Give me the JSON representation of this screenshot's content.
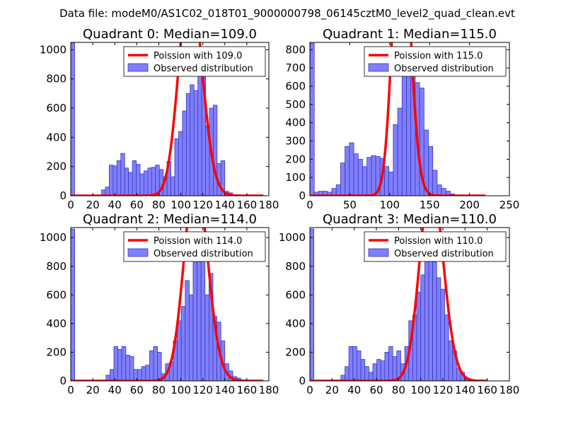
{
  "figure": {
    "suptitle": "Data file: modeM0/AS1C02_018T01_9000000798_06145cztM0_level2_quad_clean.evt",
    "colors": {
      "poisson": "#ff0000",
      "hist_fill": "#7f7fff",
      "hist_edge": "#3a3ab8"
    }
  },
  "chart_data": [
    {
      "type": "bar",
      "title": "Quadrant 0: Median=109.0",
      "xlabel": "",
      "ylabel": "",
      "xlim": [
        0,
        180
      ],
      "ylim": [
        0,
        1050
      ],
      "xticks": [
        0,
        20,
        40,
        60,
        80,
        100,
        120,
        140,
        160,
        180
      ],
      "yticks": [
        0,
        200,
        400,
        600,
        800,
        1000
      ],
      "grid": false,
      "legend": {
        "placement": "top-right",
        "entries": [
          "Poission with 109.0",
          "Observed distribution"
        ]
      },
      "series": [
        {
          "name": "Observed distribution",
          "bin_width": 3.5,
          "bins": [
            [
              0,
              1045
            ],
            [
              28,
              40
            ],
            [
              31.5,
              60
            ],
            [
              35,
              210
            ],
            [
              38.5,
              205
            ],
            [
              42,
              240
            ],
            [
              45.5,
              290
            ],
            [
              49,
              190
            ],
            [
              52.5,
              160
            ],
            [
              56,
              240
            ],
            [
              59.5,
              215
            ],
            [
              63,
              150
            ],
            [
              66.5,
              170
            ],
            [
              70,
              190
            ],
            [
              73.5,
              195
            ],
            [
              77,
              210
            ],
            [
              80.5,
              180
            ],
            [
              84,
              130
            ],
            [
              87.5,
              235
            ],
            [
              91,
              130
            ],
            [
              94.5,
              390
            ],
            [
              98,
              440
            ],
            [
              101.5,
              580
            ],
            [
              105,
              700
            ],
            [
              108.5,
              760
            ],
            [
              112,
              720
            ],
            [
              115.5,
              1000
            ],
            [
              119,
              820
            ],
            [
              122.5,
              480
            ],
            [
              126,
              600
            ],
            [
              129.5,
              620
            ],
            [
              133,
              220
            ],
            [
              136.5,
              240
            ],
            [
              140,
              30
            ],
            [
              143.5,
              20
            ]
          ]
        },
        {
          "name": "Poission with 109.0",
          "mean": 109.0,
          "x": [
            0,
            175
          ]
        }
      ]
    },
    {
      "type": "bar",
      "title": "Quadrant 1: Median=115.0",
      "xlabel": "",
      "ylabel": "",
      "xlim": [
        0,
        250
      ],
      "ylim": [
        0,
        840
      ],
      "xticks": [
        0,
        50,
        100,
        150,
        200,
        250
      ],
      "yticks": [
        0,
        100,
        200,
        300,
        400,
        500,
        600,
        700,
        800
      ],
      "grid": false,
      "legend": {
        "placement": "top-right",
        "entries": [
          "Poission with 115.0",
          "Observed distribution"
        ]
      },
      "series": [
        {
          "name": "Observed distribution",
          "bin_width": 5.5,
          "bins": [
            [
              0,
              835
            ],
            [
              5.5,
              20
            ],
            [
              11,
              25
            ],
            [
              16.5,
              25
            ],
            [
              22,
              20
            ],
            [
              27.5,
              40
            ],
            [
              33,
              60
            ],
            [
              38.5,
              180
            ],
            [
              44,
              270
            ],
            [
              49.5,
              290
            ],
            [
              55,
              230
            ],
            [
              60.5,
              200
            ],
            [
              66,
              160
            ],
            [
              71.5,
              210
            ],
            [
              77,
              220
            ],
            [
              82.5,
              215
            ],
            [
              88,
              205
            ],
            [
              93.5,
              160
            ],
            [
              99,
              130
            ],
            [
              104.5,
              390
            ],
            [
              110,
              480
            ],
            [
              115.5,
              660
            ],
            [
              121,
              720
            ],
            [
              126.5,
              800
            ],
            [
              132,
              620
            ],
            [
              137.5,
              590
            ],
            [
              143,
              360
            ],
            [
              148.5,
              270
            ],
            [
              154,
              140
            ],
            [
              159.5,
              60
            ],
            [
              165,
              40
            ],
            [
              170.5,
              25
            ],
            [
              176,
              10
            ]
          ]
        },
        {
          "name": "Poission with 115.0",
          "mean": 115.0,
          "x": [
            0,
            220
          ]
        }
      ]
    },
    {
      "type": "bar",
      "title": "Quadrant 2: Median=114.0",
      "xlabel": "",
      "ylabel": "",
      "xlim": [
        0,
        180
      ],
      "ylim": [
        0,
        1070
      ],
      "xticks": [
        0,
        20,
        40,
        60,
        80,
        100,
        120,
        140,
        160,
        180
      ],
      "yticks": [
        0,
        200,
        400,
        600,
        800,
        1000
      ],
      "grid": false,
      "legend": {
        "placement": "top-right",
        "entries": [
          "Poission with 114.0",
          "Observed distribution"
        ]
      },
      "series": [
        {
          "name": "Observed distribution",
          "bin_width": 3.6,
          "bins": [
            [
              0,
              1060
            ],
            [
              32,
              40
            ],
            [
              35.6,
              80
            ],
            [
              39.2,
              240
            ],
            [
              42.8,
              220
            ],
            [
              46.4,
              240
            ],
            [
              50,
              180
            ],
            [
              53.6,
              170
            ],
            [
              57.2,
              80
            ],
            [
              60.8,
              80
            ],
            [
              64.4,
              100
            ],
            [
              68,
              110
            ],
            [
              71.6,
              210
            ],
            [
              75.2,
              240
            ],
            [
              78.8,
              200
            ],
            [
              82.4,
              50
            ],
            [
              86,
              120
            ],
            [
              89.6,
              130
            ],
            [
              93.2,
              280
            ],
            [
              96.8,
              420
            ],
            [
              100.4,
              520
            ],
            [
              104,
              700
            ],
            [
              107.6,
              600
            ],
            [
              111.2,
              1040
            ],
            [
              114.8,
              880
            ],
            [
              118.4,
              900
            ],
            [
              122,
              600
            ],
            [
              125.6,
              750
            ],
            [
              129.2,
              450
            ],
            [
              132.8,
              410
            ],
            [
              136.4,
              280
            ],
            [
              140,
              120
            ],
            [
              143.6,
              70
            ],
            [
              147.2,
              30
            ],
            [
              150.8,
              20
            ]
          ]
        },
        {
          "name": "Poission with 114.0",
          "mean": 114.0,
          "x": [
            0,
            175
          ]
        }
      ]
    },
    {
      "type": "bar",
      "title": "Quadrant 3: Median=110.0",
      "xlabel": "",
      "ylabel": "",
      "xlim": [
        0,
        180
      ],
      "ylim": [
        0,
        1070
      ],
      "xticks": [
        0,
        20,
        40,
        60,
        80,
        100,
        120,
        140,
        160,
        180
      ],
      "yticks": [
        0,
        200,
        400,
        600,
        800,
        1000
      ],
      "grid": false,
      "legend": {
        "placement": "top-right",
        "entries": [
          "Poission with 110.0",
          "Observed distribution"
        ]
      },
      "series": [
        {
          "name": "Observed distribution",
          "bin_width": 3.6,
          "bins": [
            [
              0,
              1060
            ],
            [
              28,
              40
            ],
            [
              31.6,
              100
            ],
            [
              35.2,
              240
            ],
            [
              38.8,
              240
            ],
            [
              42.4,
              210
            ],
            [
              46,
              150
            ],
            [
              49.6,
              100
            ],
            [
              53.2,
              60
            ],
            [
              56.8,
              120
            ],
            [
              60.4,
              150
            ],
            [
              64,
              140
            ],
            [
              67.6,
              200
            ],
            [
              71.2,
              240
            ],
            [
              74.8,
              170
            ],
            [
              78.4,
              210
            ],
            [
              82,
              120
            ],
            [
              85.6,
              240
            ],
            [
              89.2,
              420
            ],
            [
              92.8,
              460
            ],
            [
              96.4,
              620
            ],
            [
              100,
              740
            ],
            [
              103.6,
              1030
            ],
            [
              107.2,
              950
            ],
            [
              110.8,
              830
            ],
            [
              114.4,
              720
            ],
            [
              118,
              640
            ],
            [
              121.6,
              460
            ],
            [
              125.2,
              280
            ],
            [
              128.8,
              210
            ],
            [
              132.4,
              90
            ],
            [
              136,
              60
            ],
            [
              139.6,
              20
            ]
          ]
        },
        {
          "name": "Poission with 110.0",
          "mean": 110.0,
          "x": [
            0,
            160
          ]
        }
      ]
    }
  ]
}
